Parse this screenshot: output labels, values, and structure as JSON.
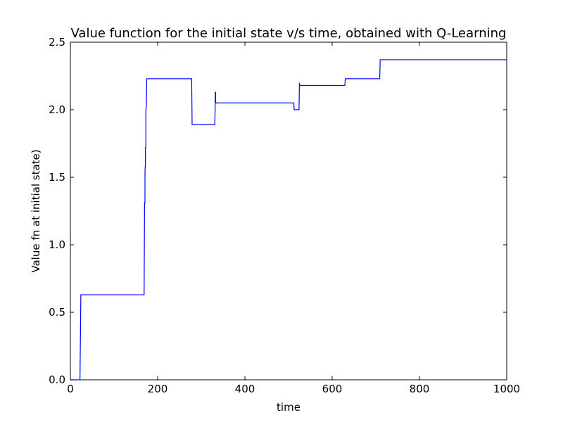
{
  "chart_data": {
    "type": "line",
    "title": "Value function for the initial state v/s time, obtained with Q-Learning",
    "xlabel": "time",
    "ylabel": "Value fn at initial state)",
    "xlim": [
      0,
      1000
    ],
    "ylim": [
      0.0,
      2.5
    ],
    "xticks": [
      0,
      200,
      400,
      600,
      800,
      1000
    ],
    "xtick_labels": [
      "0",
      "200",
      "400",
      "600",
      "800",
      "1000"
    ],
    "yticks": [
      0.0,
      0.5,
      1.0,
      1.5,
      2.0,
      2.5
    ],
    "ytick_labels": [
      "0.0",
      "0.5",
      "1.0",
      "1.5",
      "2.0",
      "2.5"
    ],
    "grid": false,
    "line_color": "#0000ff",
    "series": [
      {
        "x": [
          0,
          22,
          24,
          169,
          170,
          170,
          171,
          171,
          172,
          172,
          173,
          173,
          174,
          174,
          175,
          176,
          278,
          279,
          331,
          332,
          332,
          333,
          333,
          334,
          335,
          512,
          513,
          524,
          525,
          525,
          526,
          527,
          629,
          630,
          709,
          710,
          1000
        ],
        "y": [
          0.0,
          0.0,
          0.63,
          0.63,
          1.3,
          1.31,
          1.31,
          1.55,
          1.6,
          1.72,
          1.72,
          2.0,
          2.01,
          2.01,
          2.23,
          2.23,
          2.23,
          1.89,
          1.89,
          2.05,
          2.13,
          2.13,
          2.06,
          2.05,
          2.05,
          2.05,
          2.0,
          2.0,
          2.2,
          2.19,
          2.18,
          2.18,
          2.18,
          2.23,
          2.23,
          2.37,
          2.37
        ]
      }
    ]
  }
}
